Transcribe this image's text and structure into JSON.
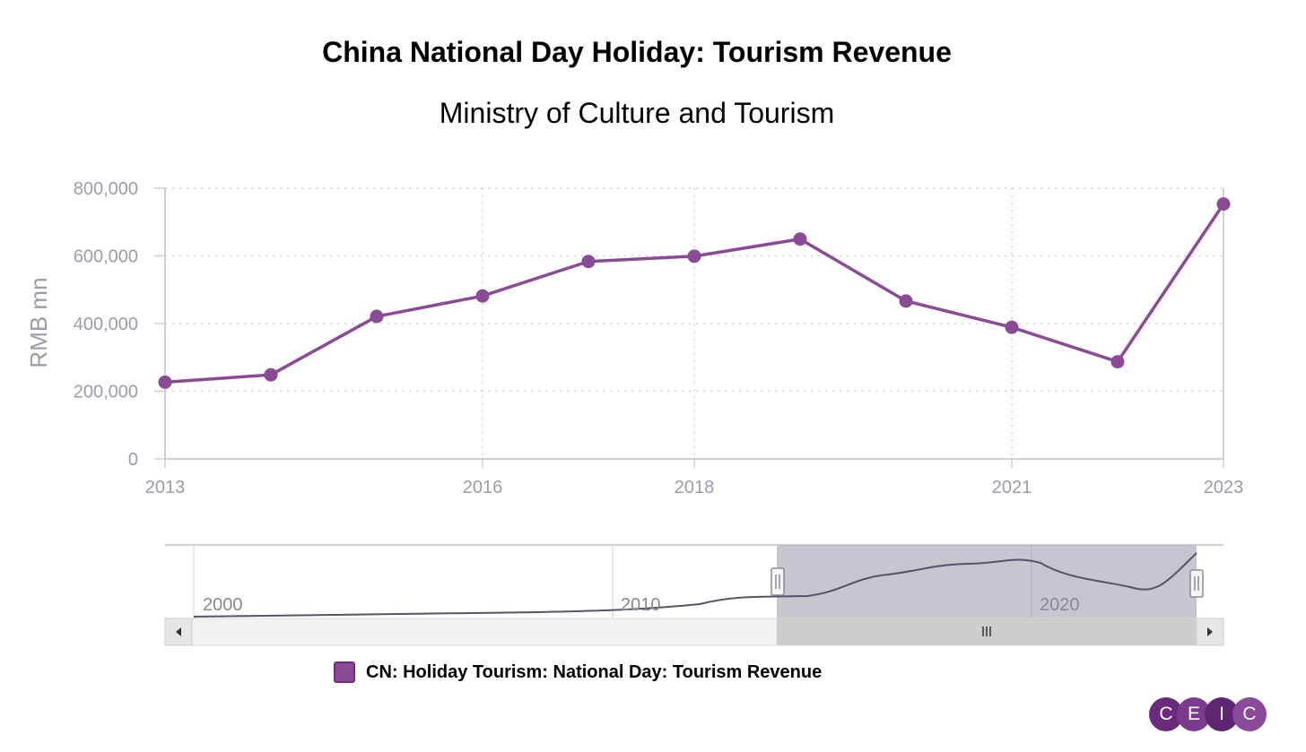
{
  "chart_data": {
    "type": "line",
    "title": "China National Day Holiday: Tourism Revenue",
    "subtitle": "Ministry of Culture and Tourism",
    "ylabel": "RMB mn",
    "xlabel": "",
    "x": [
      2013,
      2014,
      2015,
      2016,
      2017,
      2018,
      2019,
      2020,
      2021,
      2022,
      2023
    ],
    "series": [
      {
        "name": "CN: Holiday Tourism: National Day: Tourism Revenue",
        "values": [
          226800,
          248500,
          421100,
          481600,
          583600,
          599100,
          649700,
          466560,
          389010,
          287210,
          753400
        ]
      }
    ],
    "xlim": [
      2013,
      2023
    ],
    "ylim": [
      0,
      800000
    ],
    "x_ticks": [
      2013,
      2016,
      2018,
      2021,
      2023
    ],
    "x_tick_labels": [
      "2013",
      "2016",
      "2018",
      "2021",
      "2023"
    ],
    "y_ticks": [
      0,
      200000,
      400000,
      600000,
      800000
    ],
    "y_tick_labels": [
      "0",
      "200,000",
      "400,000",
      "600,000",
      "800,000"
    ],
    "grid": true,
    "legend_position": "bottom",
    "color": "#8b4a96",
    "navigator": {
      "labels": [
        "2000",
        "2010",
        "2020"
      ],
      "range_start": 2013,
      "range_end": 2023
    }
  },
  "legend": {
    "label": "CN: Holiday Tourism: National Day: Tourism Revenue"
  },
  "logo": {
    "letters": [
      "C",
      "E",
      "I",
      "C"
    ]
  }
}
